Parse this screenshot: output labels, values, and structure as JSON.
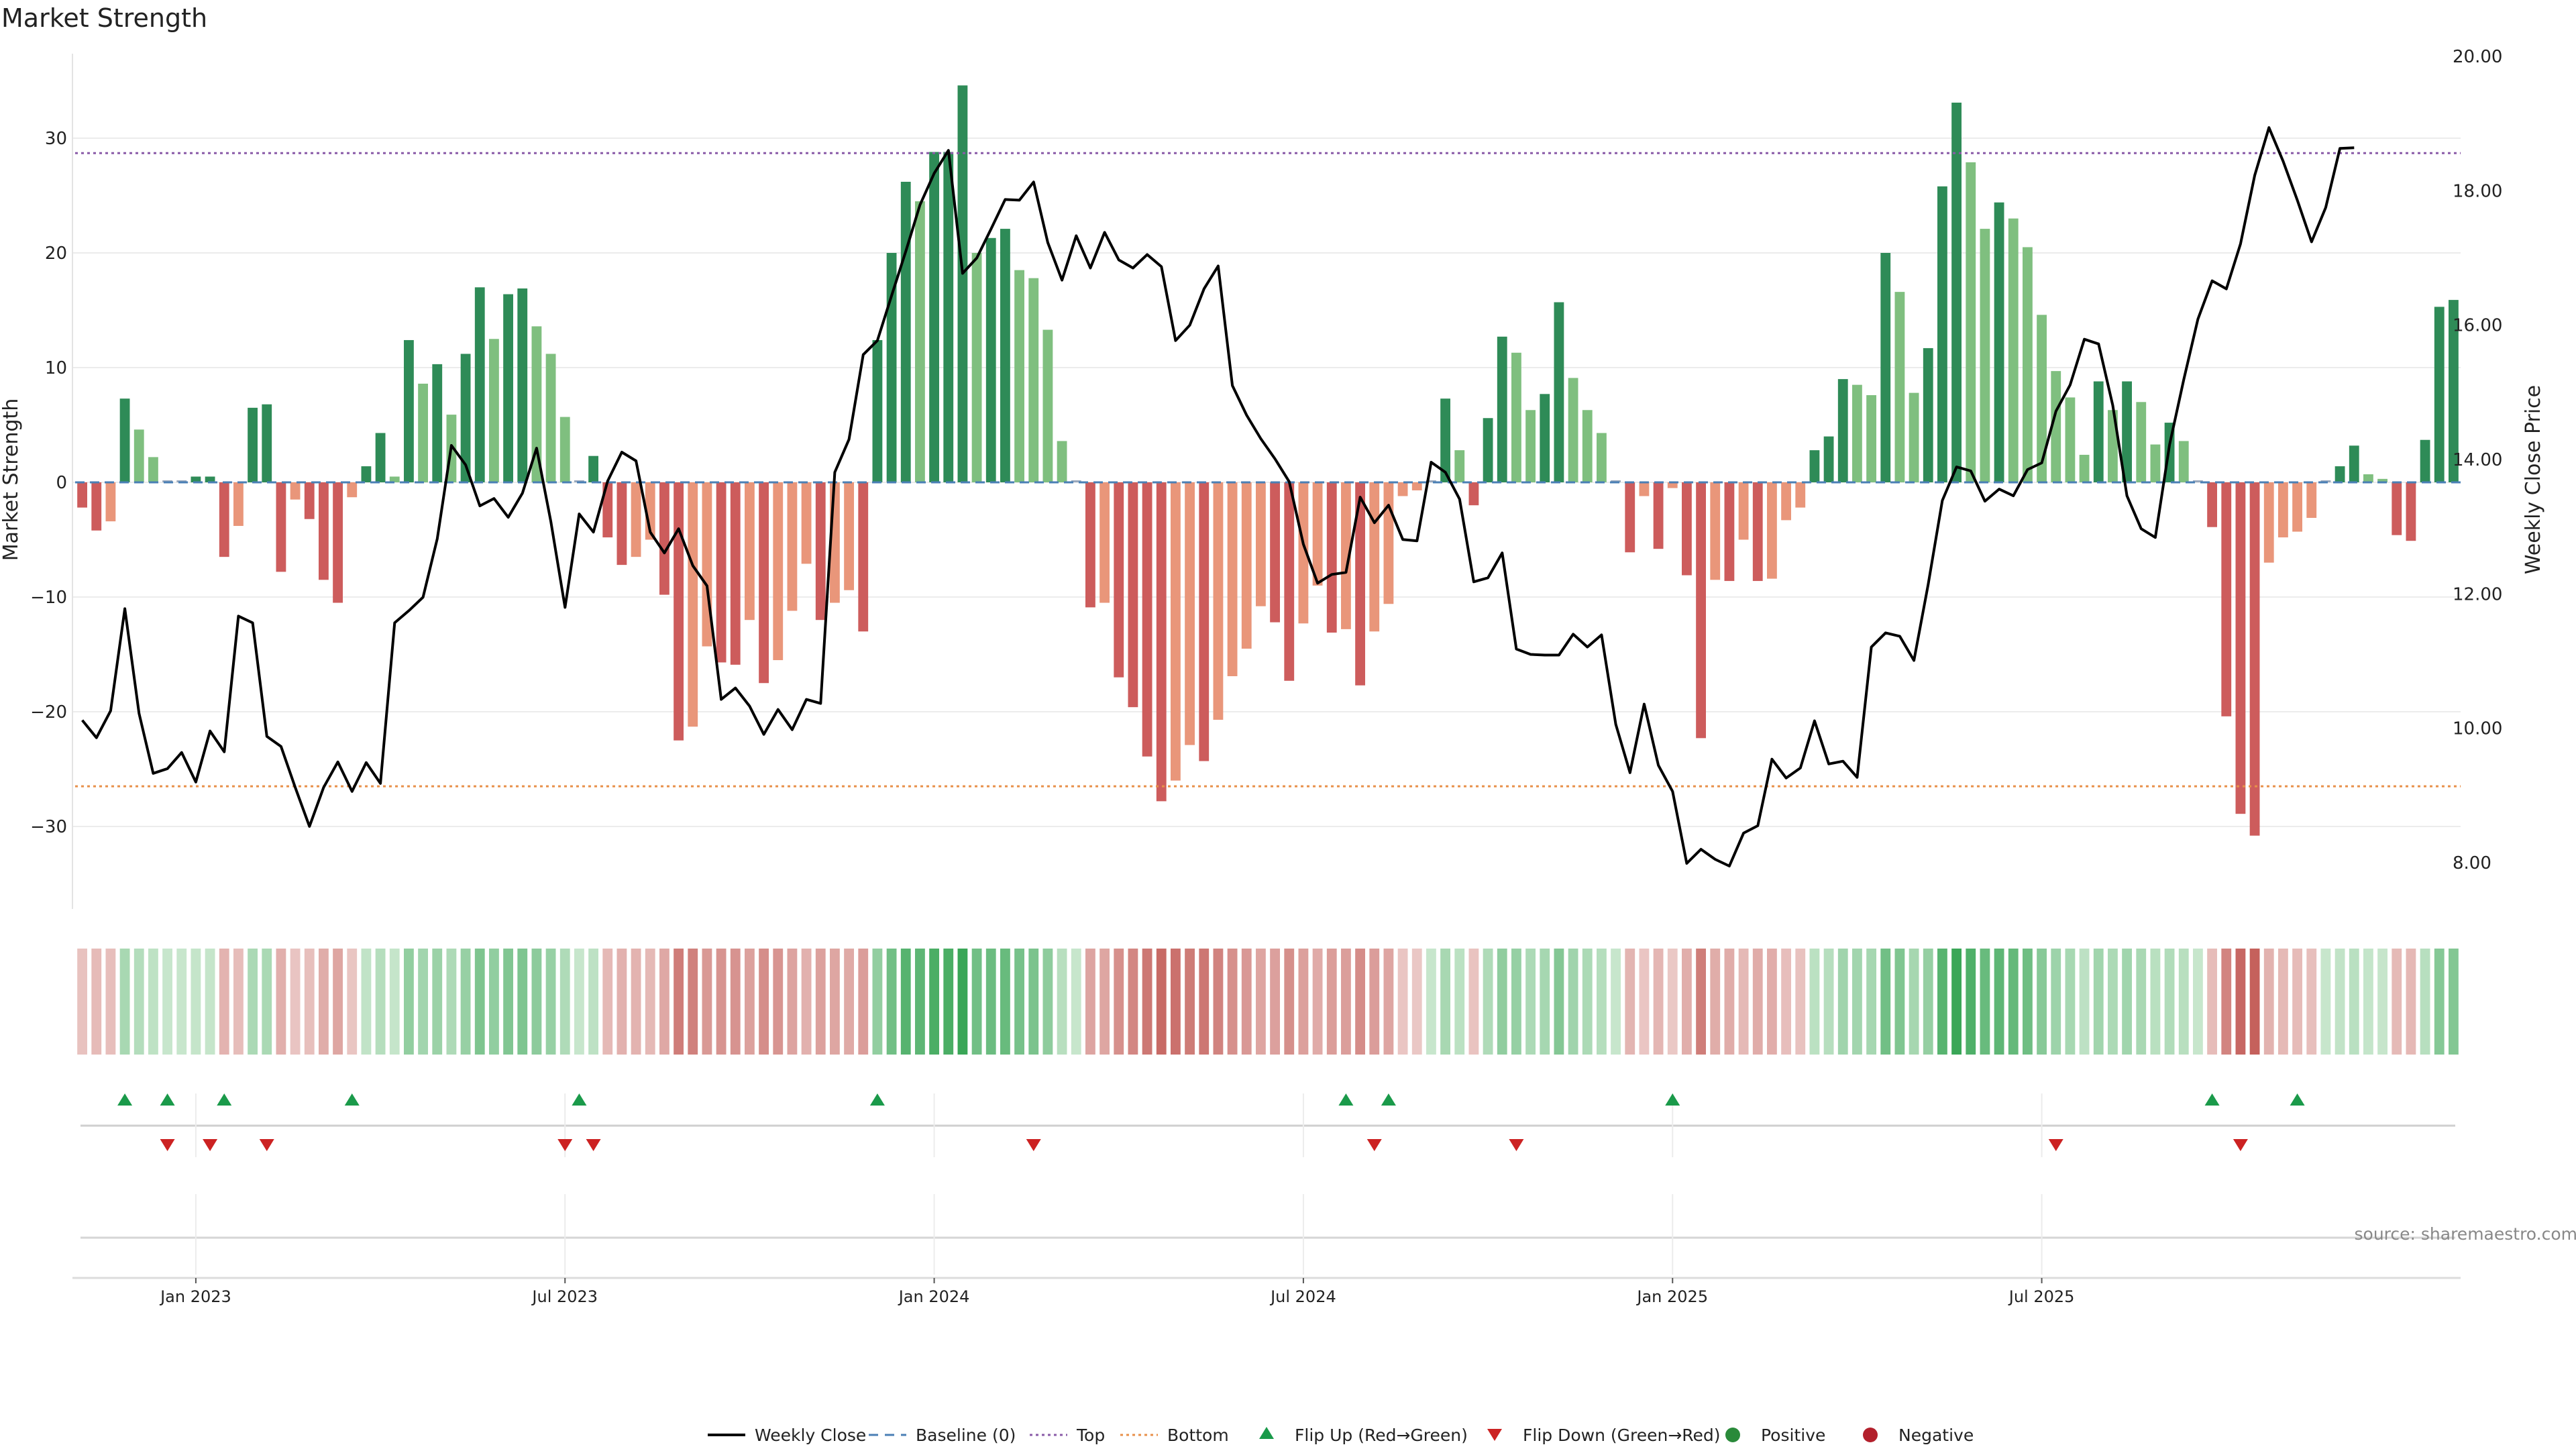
{
  "chart_data": {
    "type": "bar",
    "title": "Market Strength",
    "ylabel_left": "Market Strength",
    "ylabel_right": "Weekly Close Price",
    "source": "source: sharemaestro.com",
    "ylim_left": [
      -37,
      37
    ],
    "ylim_right": [
      7.5,
      20.0
    ],
    "yticks_left": [
      "30",
      "20",
      "10",
      "0",
      "−10",
      "−20",
      "−30"
    ],
    "yticks_left_values": [
      30,
      20,
      10,
      0,
      -10,
      -20,
      -30
    ],
    "yticks_right": [
      "20.00",
      "18.00",
      "16.00",
      "14.00",
      "12.00",
      "10.00",
      "8.00"
    ],
    "yticks_right_values": [
      20,
      18,
      16,
      14,
      12,
      10,
      8
    ],
    "x_label_positions": [
      8.5,
      34.5,
      60.5,
      86.5,
      112.5,
      138.5
    ],
    "x_labels": [
      "Jan 2023",
      "Jul 2023",
      "Jan 2024",
      "Jul 2024",
      "Jan 2025",
      "Jul 2025"
    ],
    "top_line": 28.7,
    "bottom_line": -26.5,
    "baseline": 0,
    "strength": [
      -2.2,
      -4.2,
      -3.4,
      7.3,
      4.6,
      2.2,
      0,
      0,
      0.5,
      0.5,
      -6.5,
      -3.8,
      6.5,
      6.8,
      -7.8,
      -1.5,
      -3.2,
      -8.5,
      -10.5,
      -1.3,
      1.4,
      4.3,
      0.5,
      12.4,
      8.6,
      10.3,
      5.9,
      11.2,
      17.0,
      12.5,
      16.4,
      16.9,
      13.6,
      11.2,
      5.7,
      0,
      2.3,
      -4.8,
      -7.2,
      -6.5,
      -5.0,
      -9.8,
      -22.5,
      -21.3,
      -14.3,
      -15.7,
      -15.9,
      -12.0,
      -17.5,
      -15.5,
      -11.2,
      -7.1,
      -12.0,
      -10.5,
      -9.4,
      -13.0,
      12.4,
      20.0,
      26.2,
      24.5,
      28.8,
      28.8,
      34.6,
      20.0,
      21.3,
      22.1,
      18.5,
      17.8,
      13.3,
      3.6,
      0,
      -10.9,
      -10.5,
      -17.0,
      -19.6,
      -23.9,
      -27.8,
      -26.0,
      -22.9,
      -24.3,
      -20.7,
      -16.9,
      -14.5,
      -10.8,
      -12.2,
      -17.3,
      -12.3,
      -9.0,
      -13.1,
      -12.8,
      -17.7,
      -13.0,
      -10.6,
      -1.2,
      -0.7,
      0,
      7.3,
      2.8,
      -2.0,
      5.6,
      12.7,
      11.3,
      6.3,
      7.7,
      15.7,
      9.1,
      6.3,
      4.3,
      0,
      -6.1,
      -1.2,
      -5.8,
      -0.5,
      -8.1,
      -22.3,
      -8.5,
      -8.6,
      -5.0,
      -8.6,
      -8.4,
      -3.3,
      -2.2,
      2.8,
      4.0,
      9.0,
      8.5,
      7.6,
      20.0,
      16.6,
      7.8,
      11.7,
      25.8,
      33.1,
      27.9,
      22.1,
      24.4,
      23.0,
      20.5,
      14.6,
      9.7,
      7.4,
      2.4,
      8.8,
      6.3,
      8.8,
      7.0,
      3.3,
      5.2,
      3.6,
      0,
      -3.9,
      -20.4,
      -28.9,
      -30.8,
      -7.0,
      -4.8,
      -4.3,
      -3.1,
      0,
      1.4,
      3.2,
      0.7,
      0.3,
      -4.6,
      -5.1,
      3.7,
      15.3,
      15.9
    ],
    "close": [
      10.12,
      9.86,
      10.26,
      11.78,
      10.22,
      9.33,
      9.4,
      9.64,
      9.2,
      9.96,
      9.65,
      11.67,
      11.57,
      9.88,
      9.73,
      9.12,
      8.54,
      9.12,
      9.5,
      9.06,
      9.49,
      9.18,
      11.57,
      11.75,
      11.95,
      12.82,
      14.21,
      13.92,
      13.31,
      13.42,
      13.14,
      13.5,
      14.17,
      13.08,
      11.8,
      13.19,
      12.92,
      13.68,
      14.11,
      13.98,
      12.92,
      12.61,
      12.97,
      12.42,
      12.12,
      10.43,
      10.6,
      10.33,
      9.91,
      10.28,
      9.98,
      10.43,
      10.37,
      13.81,
      14.3,
      15.56,
      15.77,
      16.44,
      17.1,
      17.79,
      18.26,
      18.6,
      16.77,
      17.0,
      17.43,
      17.87,
      17.86,
      18.13,
      17.23,
      16.67,
      17.33,
      16.85,
      17.38,
      16.97,
      16.85,
      17.05,
      16.87,
      15.77,
      16.0,
      16.54,
      16.88,
      15.1,
      14.66,
      14.31,
      14.01,
      13.67,
      12.74,
      12.16,
      12.29,
      12.32,
      13.44,
      13.06,
      13.32,
      12.81,
      12.79,
      13.96,
      13.81,
      13.41,
      12.18,
      12.24,
      12.61,
      11.18,
      11.1,
      11.09,
      11.09,
      11.4,
      11.21,
      11.39,
      10.06,
      9.34,
      10.36,
      9.45,
      9.06,
      7.99,
      8.2,
      8.05,
      7.95,
      8.44,
      8.55,
      9.54,
      9.26,
      9.41,
      10.11,
      9.47,
      9.51,
      9.27,
      11.21,
      11.42,
      11.37,
      11.01,
      12.14,
      13.39,
      13.89,
      13.83,
      13.38,
      13.56,
      13.46,
      13.85,
      13.95,
      14.72,
      15.11,
      15.79,
      15.72,
      14.81,
      13.46,
      12.97,
      12.84,
      14.22,
      15.19,
      16.09,
      16.66,
      16.54,
      17.21,
      18.23,
      18.94,
      18.44,
      17.86,
      17.24,
      17.75,
      18.63,
      18.64
    ],
    "flip_up_index": [
      3,
      6,
      10,
      19,
      35,
      56,
      89,
      92,
      112,
      150,
      156
    ],
    "flip_down_index": [
      6,
      9,
      13,
      34,
      36,
      67,
      91,
      101,
      139,
      152
    ],
    "series": [
      {
        "name": "Weekly Close",
        "type": "line",
        "axis": "right"
      },
      {
        "name": "Market Strength",
        "type": "bar",
        "axis": "left"
      }
    ],
    "legend": [
      {
        "label": "Weekly Close",
        "style": "line",
        "color": "#000000"
      },
      {
        "label": "Baseline (0)",
        "style": "dash",
        "color": "#4a7fb5"
      },
      {
        "label": "Top",
        "style": "dot",
        "color": "#8a5ba8"
      },
      {
        "label": "Bottom",
        "style": "dot",
        "color": "#e8904a"
      },
      {
        "label": "Flip Up (Red→Green)",
        "style": "tri-up",
        "color": "#1a9a4a"
      },
      {
        "label": "Flip Down (Green→Red)",
        "style": "tri-down",
        "color": "#cc2222"
      },
      {
        "label": "Positive",
        "style": "circle",
        "color": "#2a8a3a"
      },
      {
        "label": "Negative",
        "style": "circle",
        "color": "#b3202c"
      }
    ],
    "colors": {
      "pos_strong": "#2e8b57",
      "pos_weak": "#7fbf7f",
      "neg_strong": "#cd5c5c",
      "neg_weak": "#e9967a",
      "top_line": "#8a5ba8",
      "bottom_line": "#e8904a",
      "baseline": "#4a7fb5"
    }
  }
}
